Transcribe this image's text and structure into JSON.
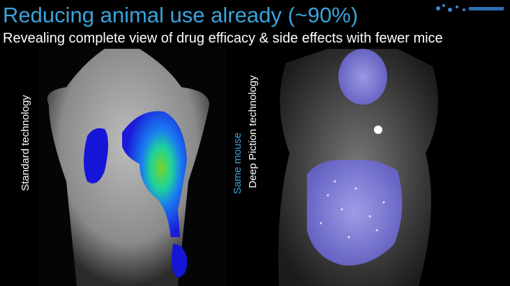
{
  "slide": {
    "title": "Reducing animal use already (~90%)",
    "subtitle": "Revealing complete view of drug efficacy & side effects with fewer mice",
    "left_label": "Standard technology",
    "right_label_top": "Same mouse",
    "right_label_bottom": "Deep Piction technology"
  }
}
